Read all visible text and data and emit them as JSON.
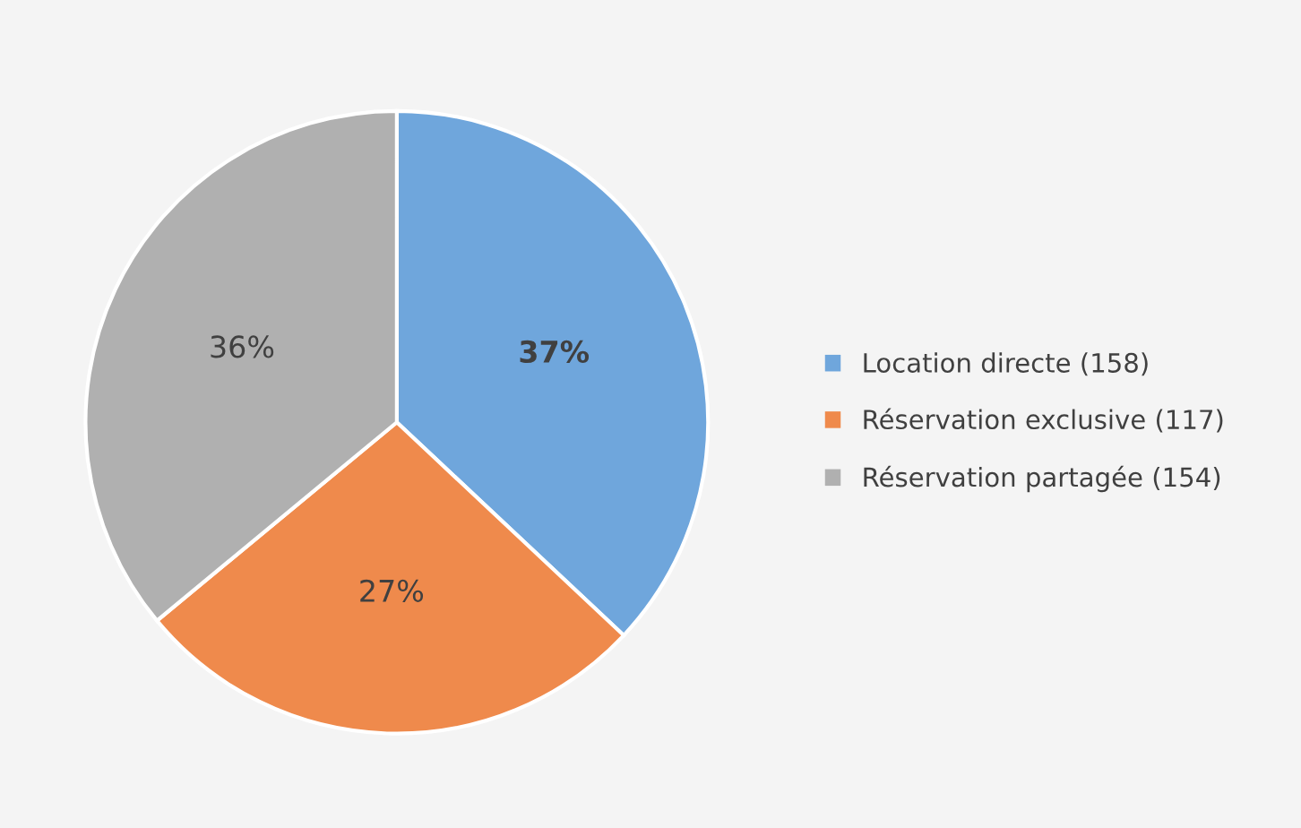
{
  "chart_data": {
    "type": "pie",
    "categories": [
      "Location directe (158)",
      "Réservation exclusive (117)",
      "Réservation partagée (154)"
    ],
    "values": [
      37,
      27,
      36
    ],
    "value_labels": [
      "37%",
      "27%",
      "36%"
    ],
    "colors": [
      "#6fa6dc",
      "#ef8a4c",
      "#b0b0b0"
    ],
    "legend": "right"
  }
}
